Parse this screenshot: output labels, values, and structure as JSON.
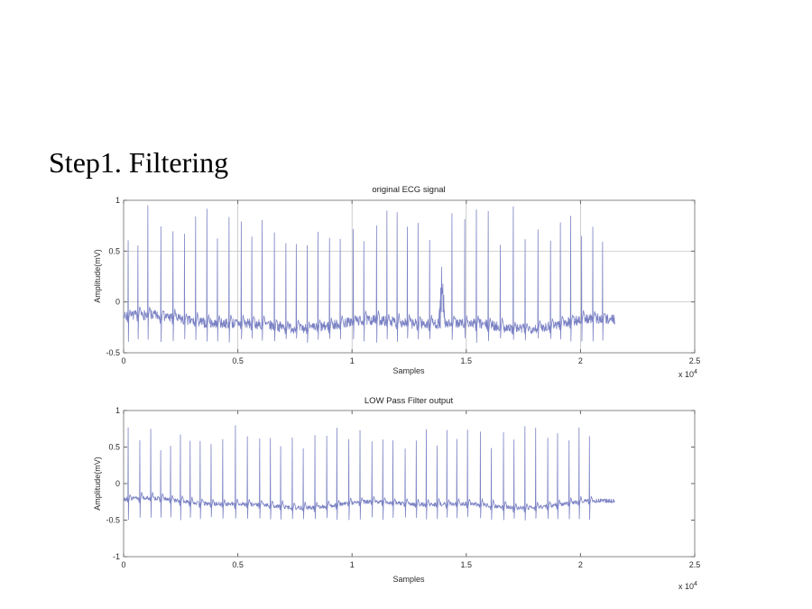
{
  "slide": {
    "title": "Step1. Filtering",
    "background_color": "#ffffff"
  },
  "chart_data": [
    {
      "type": "line",
      "title": "original ECG signal",
      "xlabel": "Samples",
      "ylabel": "Amplitude(mV)",
      "x_multiplier": {
        "base": "x 10",
        "exp": "4"
      },
      "xlim": [
        0,
        25000
      ],
      "ylim": [
        -0.5,
        1
      ],
      "xticks": [
        0,
        5000,
        10000,
        15000,
        20000,
        25000
      ],
      "xtick_labels": [
        "0",
        "0.5",
        "1",
        "1.5",
        "2",
        "2.5"
      ],
      "yticks": [
        -0.5,
        0,
        0.5,
        1
      ],
      "ytick_labels": [
        "-0.5",
        "0",
        "0.5",
        "1"
      ],
      "grid": true,
      "legend": null,
      "line_color": "#7b82c4",
      "signal": {
        "kind": "ecg",
        "description": "Raw ECG trace: noisy wandering baseline around -0.2 mV, about 43 QRS spikes peaking between 0.55 and 0.95 mV, S-wave dips near -0.4 mV, one wide noise artifact near sample 14500; trace ends near sample 21500 of the 0-25000 axis.",
        "x_end": 21500,
        "n_beats": 43,
        "baseline": -0.2,
        "noise_amp": 0.05,
        "peak_min": 0.55,
        "peak_max": 0.95,
        "s_dip": -0.4,
        "artifact_beat": 28,
        "seed": 7
      }
    },
    {
      "type": "line",
      "title": "LOW Pass Filter output",
      "xlabel": "Samples",
      "ylabel": "Amplitude(mV)",
      "x_multiplier": {
        "base": "x 10",
        "exp": "4"
      },
      "xlim": [
        0,
        25000
      ],
      "ylim": [
        -1,
        1
      ],
      "xticks": [
        0,
        5000,
        10000,
        15000,
        20000,
        25000
      ],
      "xtick_labels": [
        "0",
        "0.5",
        "1",
        "1.5",
        "2",
        "2.5"
      ],
      "yticks": [
        -1,
        -0.5,
        0,
        0.5,
        1
      ],
      "ytick_labels": [
        "-1",
        "-0.5",
        "0",
        "0.5",
        "1"
      ],
      "grid": false,
      "legend": null,
      "line_color": "#7b82c4",
      "signal": {
        "kind": "ecg",
        "description": "Low-pass filtered ECG: smoother baseline around -0.27 mV, about 43 QRS spikes peaking between 0.45 and 0.8 mV, S-wave dips near -0.5 mV; trace ends near sample 21500 of the 0-25000 axis.",
        "x_end": 21500,
        "n_beats": 43,
        "baseline": -0.27,
        "noise_amp": 0.027,
        "peak_min": 0.45,
        "peak_max": 0.8,
        "s_dip": -0.5,
        "seed": 13
      }
    }
  ]
}
